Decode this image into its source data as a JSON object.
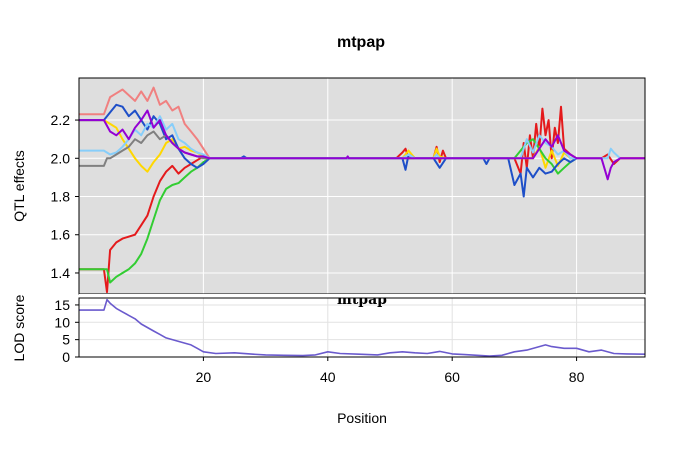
{
  "chart_data": [
    {
      "type": "line",
      "title": "mtpap",
      "xlabel": "",
      "ylabel": "QTL effects",
      "xlim": [
        0,
        91
      ],
      "ylim": [
        1.29,
        2.42
      ],
      "xticks": [
        20,
        40,
        60,
        80
      ],
      "yticks": [
        1.4,
        1.6,
        1.8,
        2.0,
        2.2
      ],
      "ytick_labels": [
        "1.4",
        "1.6",
        "1.8",
        "2.0",
        "2.2"
      ],
      "background": "#dedede",
      "grid": true,
      "series": [
        {
          "color": "#e41a1c",
          "x": [
            0,
            4,
            4.5,
            5,
            6,
            7,
            9,
            10,
            11,
            12,
            13,
            14,
            15,
            16,
            17,
            18,
            19,
            20,
            21,
            51,
            52,
            52.5,
            53,
            57,
            57.5,
            58,
            58.5,
            59,
            70,
            71,
            71.5,
            72,
            72.5,
            73,
            73.5,
            74,
            74.5,
            75,
            75.5,
            76,
            76.5,
            77,
            77.5,
            78,
            79,
            80,
            84,
            85,
            86,
            87,
            88,
            91
          ],
          "y": [
            1.42,
            1.42,
            1.3,
            1.52,
            1.56,
            1.58,
            1.6,
            1.65,
            1.7,
            1.8,
            1.88,
            1.93,
            1.96,
            1.92,
            1.95,
            1.97,
            1.99,
            2.01,
            2.0,
            2.0,
            2.03,
            2.05,
            2.0,
            2.0,
            2.06,
            1.98,
            2.04,
            2.0,
            2.0,
            1.92,
            2.08,
            1.95,
            2.12,
            2.0,
            2.18,
            2.05,
            2.26,
            2.12,
            2.2,
            2.0,
            2.16,
            2.08,
            2.27,
            2.05,
            2.02,
            2.0,
            2.0,
            2.02,
            1.97,
            2.0,
            2.0,
            2.0
          ]
        },
        {
          "color": "#f08080",
          "x": [
            0,
            4,
            5,
            6,
            7,
            8,
            9,
            10,
            11,
            12,
            13,
            14,
            15,
            16,
            17,
            18,
            19,
            20,
            21
          ],
          "y": [
            2.23,
            2.23,
            2.32,
            2.34,
            2.36,
            2.33,
            2.3,
            2.35,
            2.3,
            2.37,
            2.28,
            2.3,
            2.25,
            2.27,
            2.18,
            2.14,
            2.1,
            2.05,
            2.0
          ]
        },
        {
          "color": "#ffd700",
          "x": [
            0,
            4,
            5,
            6,
            7,
            8,
            9,
            10,
            11,
            12,
            13,
            14,
            15,
            16,
            17,
            18,
            19,
            20,
            21,
            52,
            53,
            54,
            57,
            57.5,
            58,
            59,
            73,
            74,
            75,
            76,
            77,
            78,
            79,
            80
          ],
          "y": [
            2.2,
            2.2,
            2.18,
            2.16,
            2.1,
            2.05,
            2.0,
            1.96,
            1.93,
            1.98,
            2.02,
            2.08,
            2.1,
            2.05,
            2.06,
            2.04,
            2.03,
            2.01,
            2.0,
            2.0,
            2.04,
            2.0,
            2.0,
            2.05,
            2.01,
            2.0,
            2.0,
            2.06,
            1.95,
            2.04,
            1.96,
            2.03,
            2.0,
            2.0
          ]
        },
        {
          "color": "#32cd32",
          "x": [
            0,
            4,
            4.5,
            5,
            6,
            7,
            8,
            9,
            10,
            11,
            12,
            13,
            14,
            15,
            16,
            17,
            18,
            19,
            20,
            21,
            70,
            71,
            72,
            73,
            74,
            75,
            76,
            77,
            78,
            79,
            80
          ],
          "y": [
            1.42,
            1.42,
            1.42,
            1.35,
            1.38,
            1.4,
            1.42,
            1.45,
            1.5,
            1.58,
            1.68,
            1.78,
            1.84,
            1.86,
            1.87,
            1.9,
            1.93,
            1.95,
            1.98,
            2.0,
            2.0,
            2.04,
            2.08,
            2.1,
            2.05,
            2.0,
            1.97,
            1.92,
            1.95,
            1.98,
            2.0
          ]
        },
        {
          "color": "#1e4fc8",
          "x": [
            0,
            4,
            5,
            6,
            7,
            8,
            9,
            10,
            11,
            12,
            13,
            14,
            15,
            16,
            17,
            18,
            19,
            20,
            21,
            26,
            26.5,
            27,
            52,
            52.5,
            53,
            54,
            57,
            58,
            59,
            65,
            65.5,
            66,
            69,
            70,
            71,
            71.5,
            72,
            73,
            74,
            75,
            76,
            77,
            78,
            79,
            80
          ],
          "y": [
            2.2,
            2.2,
            2.24,
            2.28,
            2.27,
            2.22,
            2.25,
            2.2,
            2.15,
            2.22,
            2.18,
            2.1,
            2.12,
            2.05,
            2.0,
            1.97,
            1.95,
            1.97,
            2.0,
            2.0,
            2.01,
            2.0,
            2.0,
            1.94,
            2.02,
            2.0,
            2.0,
            1.95,
            2.0,
            2.0,
            1.97,
            2.0,
            2.0,
            1.86,
            1.92,
            1.8,
            1.95,
            1.9,
            1.95,
            1.92,
            1.93,
            1.97,
            2.0,
            1.98,
            2.0
          ]
        },
        {
          "color": "#87cefa",
          "x": [
            0,
            4,
            5,
            6,
            7,
            8,
            9,
            10,
            11,
            12,
            13,
            14,
            15,
            16,
            17,
            18,
            19,
            20,
            21,
            52,
            53,
            54,
            57,
            57.5,
            58,
            59,
            71,
            71.5,
            72,
            73,
            74,
            75,
            76,
            77,
            78,
            79,
            80,
            85,
            85.5,
            86,
            87
          ],
          "y": [
            2.04,
            2.04,
            2.02,
            2.03,
            2.06,
            2.1,
            2.15,
            2.12,
            2.18,
            2.16,
            2.22,
            2.15,
            2.18,
            2.1,
            2.08,
            2.05,
            2.03,
            2.02,
            2.0,
            2.0,
            2.02,
            2.0,
            2.0,
            2.02,
            2.0,
            2.0,
            2.0,
            2.05,
            2.1,
            2.03,
            2.12,
            2.08,
            2.06,
            2.02,
            2.04,
            2.0,
            2.0,
            2.0,
            2.05,
            2.03,
            2.0
          ]
        },
        {
          "color": "#808080",
          "x": [
            0,
            4,
            4.5,
            5,
            6,
            7,
            8,
            9,
            10,
            11,
            12,
            13,
            14,
            15,
            16,
            17,
            18,
            19,
            20,
            21
          ],
          "y": [
            1.96,
            1.96,
            2.0,
            2.0,
            2.02,
            2.04,
            2.06,
            2.1,
            2.08,
            2.12,
            2.14,
            2.1,
            2.12,
            2.08,
            2.05,
            2.03,
            2.02,
            2.01,
            2.0,
            2.0
          ]
        },
        {
          "color": "#9400d3",
          "x": [
            0,
            4,
            5,
            6,
            7,
            8,
            9,
            10,
            11,
            12,
            13,
            14,
            15,
            16,
            17,
            18,
            19,
            20,
            21,
            43,
            43.2,
            43.4,
            73,
            74,
            75,
            76,
            77,
            78,
            79,
            80,
            84,
            85,
            85.5,
            86,
            87,
            91
          ],
          "y": [
            2.2,
            2.2,
            2.14,
            2.12,
            2.15,
            2.1,
            2.16,
            2.2,
            2.25,
            2.16,
            2.2,
            2.12,
            2.08,
            2.05,
            2.03,
            2.02,
            2.01,
            2.01,
            2.0,
            2.0,
            2.01,
            2.0,
            2.0,
            2.05,
            2.1,
            2.06,
            2.12,
            2.04,
            2.02,
            2.0,
            2.0,
            1.89,
            1.95,
            1.98,
            2.0,
            2.0
          ]
        }
      ]
    },
    {
      "type": "line",
      "title": "mtpap",
      "xlabel": "Position",
      "ylabel": "LOD score",
      "xlim": [
        0,
        91
      ],
      "ylim": [
        0,
        17
      ],
      "xticks": [
        20,
        40,
        60,
        80
      ],
      "xtick_labels": [
        "20",
        "40",
        "60",
        "80"
      ],
      "yticks": [
        0,
        5,
        10,
        15
      ],
      "ytick_labels": [
        "0",
        "5",
        "10",
        "15"
      ],
      "background": "#ffffff",
      "grid": true,
      "series": [
        {
          "color": "#6a5acd",
          "x": [
            0,
            2,
            4,
            4.5,
            5,
            6,
            7,
            8,
            9,
            10,
            11,
            12,
            13,
            14,
            15,
            16,
            17,
            18,
            19,
            20,
            22,
            25,
            28,
            30,
            33,
            36,
            38,
            40,
            42,
            45,
            48,
            50,
            52,
            54,
            56,
            58,
            60,
            62,
            64,
            66,
            68,
            70,
            72,
            74,
            75,
            76,
            78,
            80,
            82,
            84,
            86,
            88,
            91
          ],
          "y": [
            13.5,
            13.5,
            13.5,
            16.5,
            15.5,
            14.0,
            13.0,
            12.0,
            11.0,
            9.5,
            8.5,
            7.5,
            6.5,
            5.5,
            5.0,
            4.5,
            4.0,
            3.5,
            2.5,
            1.5,
            1.0,
            1.2,
            0.8,
            0.6,
            0.5,
            0.4,
            0.6,
            1.5,
            1.0,
            0.8,
            0.6,
            1.2,
            1.5,
            1.2,
            1.0,
            1.6,
            0.9,
            0.7,
            0.5,
            0.3,
            0.5,
            1.5,
            2.0,
            3.0,
            3.5,
            3.0,
            2.5,
            2.5,
            1.5,
            2.0,
            1.0,
            0.9,
            0.8
          ]
        }
      ]
    }
  ]
}
